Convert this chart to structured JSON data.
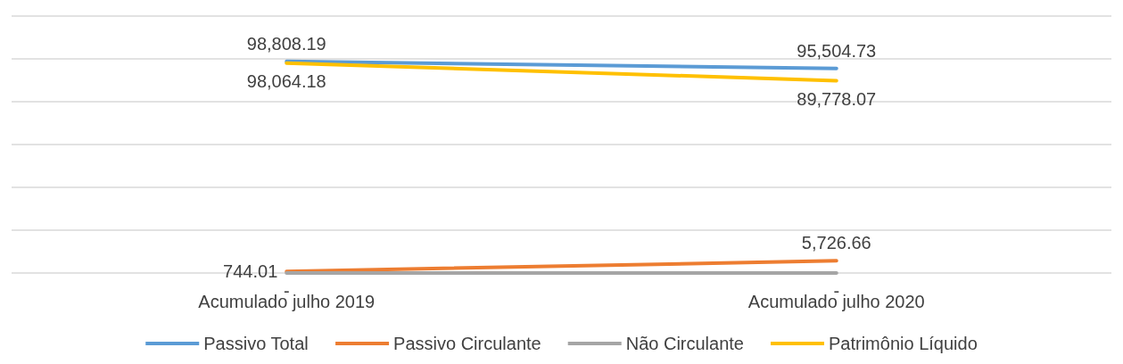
{
  "chart_data": {
    "type": "line",
    "categories": [
      "Acumulado julho 2019",
      "Acumulado julho 2020"
    ],
    "series": [
      {
        "name": "Passivo Total",
        "color": "#5b9bd5",
        "values": [
          98808.19,
          95504.73
        ],
        "value_labels": [
          "98,808.19",
          "95,504.73"
        ]
      },
      {
        "name": "Passivo Circulante",
        "color": "#ed7d31",
        "values": [
          744.01,
          5726.66
        ],
        "value_labels": [
          "744.01",
          "5,726.66"
        ]
      },
      {
        "name": "Não Circulante",
        "color": "#a5a5a5",
        "values": [
          0,
          0
        ],
        "value_labels": [
          "-",
          "-"
        ]
      },
      {
        "name": "Patrimônio Líquido",
        "color": "#ffc000",
        "values": [
          98064.18,
          89778.07
        ],
        "value_labels": [
          "98,064.18",
          "89,778.07"
        ]
      }
    ],
    "ylim": [
      0,
      120000
    ],
    "yticks": [
      0,
      20000,
      40000,
      60000,
      80000,
      100000,
      120000
    ],
    "tick_labels": "x",
    "grid": "y",
    "legend": "bottom",
    "marker": "none",
    "line_style": "solid"
  }
}
